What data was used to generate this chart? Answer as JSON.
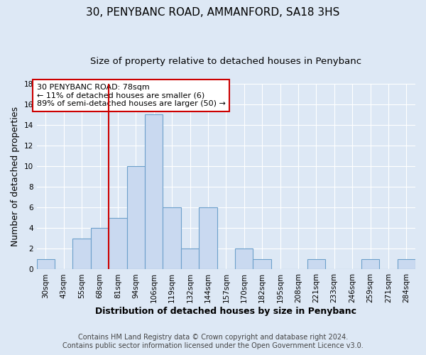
{
  "title": "30, PENYBANC ROAD, AMMANFORD, SA18 3HS",
  "subtitle": "Size of property relative to detached houses in Penybanc",
  "xlabel": "Distribution of detached houses by size in Penybanc",
  "ylabel": "Number of detached properties",
  "bin_labels": [
    "30sqm",
    "43sqm",
    "55sqm",
    "68sqm",
    "81sqm",
    "94sqm",
    "106sqm",
    "119sqm",
    "132sqm",
    "144sqm",
    "157sqm",
    "170sqm",
    "182sqm",
    "195sqm",
    "208sqm",
    "221sqm",
    "233sqm",
    "246sqm",
    "259sqm",
    "271sqm",
    "284sqm"
  ],
  "bar_heights": [
    1,
    0,
    3,
    4,
    5,
    10,
    15,
    6,
    2,
    6,
    0,
    2,
    1,
    0,
    0,
    1,
    0,
    0,
    1,
    0,
    1
  ],
  "bar_color": "#c9d9f0",
  "bar_edge_color": "#6da0cb",
  "vline_x_index": 4,
  "vline_color": "#cc0000",
  "ylim": [
    0,
    18
  ],
  "yticks": [
    0,
    2,
    4,
    6,
    8,
    10,
    12,
    14,
    16,
    18
  ],
  "annotation_title": "30 PENYBANC ROAD: 78sqm",
  "annotation_line1": "← 11% of detached houses are smaller (6)",
  "annotation_line2": "89% of semi-detached houses are larger (50) →",
  "annotation_box_color": "#ffffff",
  "annotation_box_edge": "#cc0000",
  "footer1": "Contains HM Land Registry data © Crown copyright and database right 2024.",
  "footer2": "Contains public sector information licensed under the Open Government Licence v3.0.",
  "bg_color": "#dde8f5",
  "plot_bg_color": "#dde8f5",
  "grid_color": "#ffffff",
  "title_fontsize": 11,
  "subtitle_fontsize": 9.5,
  "axis_label_fontsize": 9,
  "tick_fontsize": 7.5,
  "footer_fontsize": 7,
  "annotation_fontsize": 8
}
